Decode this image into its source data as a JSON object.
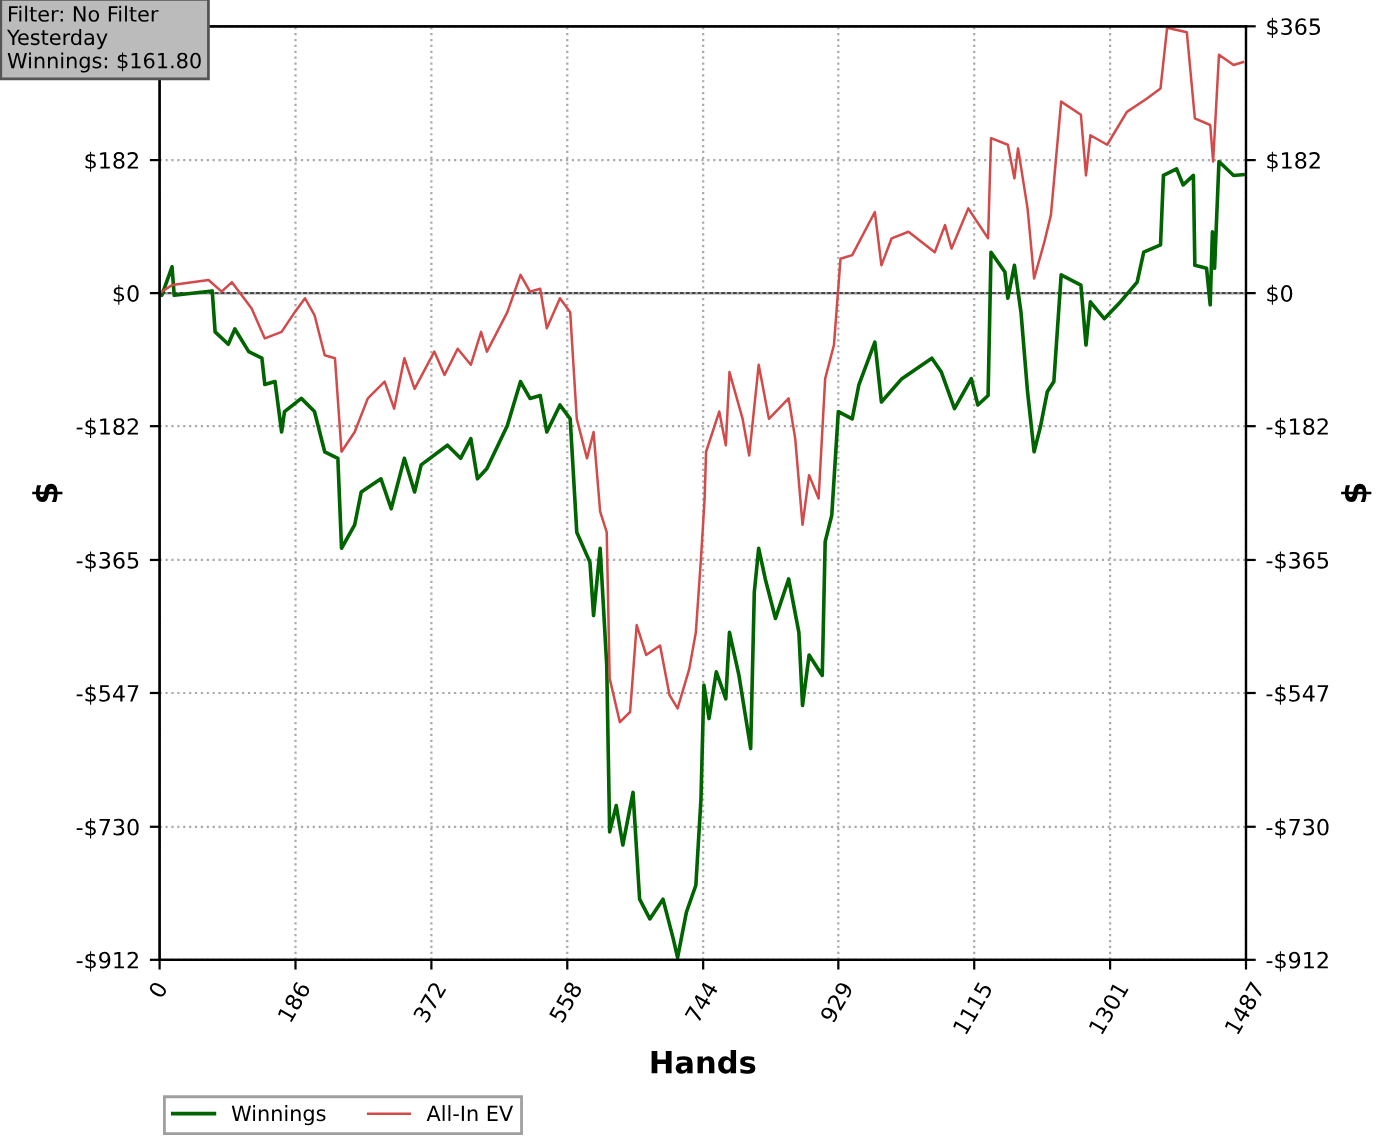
{
  "chart_data": {
    "type": "line",
    "xlabel": "Hands",
    "ylabel": "$",
    "y2label": "$",
    "annotations": [
      "Filter: No Filter\nYesterday\nWinnings: $161.80"
    ],
    "series": [
      {
        "name": "Winnings",
        "color": "#006400",
        "x": [
          0,
          3,
          17,
          20,
          72,
          76,
          94,
          103,
          122,
          140,
          144,
          158,
          167,
          171,
          194,
          212,
          226,
          244,
          249,
          267,
          276,
          303,
          317,
          335,
          349,
          358,
          394,
          412,
          426,
          435,
          448,
          476,
          494,
          507,
          521,
          530,
          548,
          562,
          571,
          589,
          594,
          603,
          612,
          616,
          625,
          634,
          648,
          657,
          671,
          689,
          703,
          709,
          721,
          734,
          741,
          745,
          752,
          762,
          775,
          780,
          793,
          809,
          814,
          820,
          829,
          843,
          861,
          875,
          880,
          889,
          907,
          911,
          920,
          929,
          948,
          957,
          979,
          988,
          1016,
          1057,
          1070,
          1088,
          1111,
          1120,
          1134,
          1138,
          1157,
          1161,
          1170,
          1179,
          1188,
          1197,
          1206,
          1215,
          1224,
          1234,
          1261,
          1268,
          1274,
          1293,
          1315,
          1338,
          1347,
          1370,
          1374,
          1392,
          1401,
          1415,
          1417,
          1433,
          1438,
          1441,
          1444,
          1450,
          1470,
          1483
        ],
        "values": [
          0,
          -3,
          36,
          -3,
          3,
          -53,
          -70,
          -49,
          -80,
          -89,
          -125,
          -121,
          -190,
          -162,
          -144,
          -162,
          -217,
          -226,
          -349,
          -317,
          -272,
          -254,
          -295,
          -226,
          -272,
          -235,
          -208,
          -226,
          -199,
          -254,
          -240,
          -181,
          -121,
          -144,
          -140,
          -190,
          -153,
          -172,
          -327,
          -368,
          -441,
          -349,
          -509,
          -737,
          -701,
          -755,
          -683,
          -829,
          -856,
          -829,
          -883,
          -909,
          -847,
          -810,
          -692,
          -536,
          -582,
          -518,
          -555,
          -464,
          -523,
          -623,
          -409,
          -349,
          -391,
          -445,
          -391,
          -464,
          -564,
          -495,
          -523,
          -340,
          -304,
          -162,
          -172,
          -126,
          -67,
          -149,
          -117,
          -89,
          -108,
          -158,
          -117,
          -153,
          -140,
          56,
          29,
          -7,
          38,
          -26,
          -135,
          -217,
          -181,
          -135,
          -121,
          25,
          11,
          -71,
          -12,
          -35,
          -12,
          15,
          56,
          66,
          161,
          170,
          148,
          161,
          38,
          34,
          -16,
          84,
          34,
          180,
          161,
          162
        ]
      },
      {
        "name": "All-In EV",
        "color": "#d24a4a",
        "x": [
          0,
          17,
          67,
          85,
          99,
          126,
          144,
          167,
          185,
          199,
          212,
          226,
          240,
          249,
          267,
          285,
          308,
          321,
          335,
          349,
          376,
          390,
          408,
          426,
          440,
          448,
          476,
          494,
          507,
          521,
          530,
          548,
          562,
          571,
          585,
          594,
          603,
          612,
          616,
          630,
          644,
          653,
          666,
          685,
          698,
          709,
          725,
          734,
          741,
          746,
          748,
          766,
          775,
          780,
          798,
          807,
          820,
          834,
          861,
          870,
          880,
          889,
          902,
          911,
          923,
          932,
          948,
          979,
          988,
          1002,
          1025,
          1061,
          1075,
          1084,
          1107,
          1116,
          1134,
          1138,
          1161,
          1170,
          1175,
          1188,
          1197,
          1211,
          1220,
          1234,
          1261,
          1268,
          1274,
          1297,
          1324,
          1351,
          1370,
          1379,
          1406,
          1417,
          1438,
          1442,
          1450,
          1470,
          1483
        ],
        "values": [
          0,
          11,
          18,
          2,
          15,
          -21,
          -62,
          -53,
          -26,
          -7,
          -30,
          -85,
          -89,
          -217,
          -190,
          -144,
          -121,
          -158,
          -89,
          -131,
          -80,
          -112,
          -76,
          -98,
          -53,
          -80,
          -26,
          25,
          2,
          6,
          -48,
          -7,
          -26,
          -172,
          -226,
          -190,
          -299,
          -327,
          -527,
          -587,
          -573,
          -454,
          -495,
          -482,
          -550,
          -568,
          -514,
          -464,
          -363,
          -281,
          -217,
          -162,
          -208,
          -108,
          -172,
          -222,
          -98,
          -172,
          -144,
          -199,
          -317,
          -249,
          -281,
          -117,
          -71,
          47,
          52,
          111,
          38,
          75,
          84,
          56,
          93,
          61,
          116,
          102,
          75,
          212,
          203,
          157,
          198,
          116,
          20,
          70,
          107,
          262,
          244,
          161,
          216,
          203,
          248,
          266,
          280,
          363,
          357,
          239,
          230,
          180,
          326,
          312,
          316
        ]
      }
    ],
    "xlim": [
      0,
      1487
    ],
    "xticks": [
      0,
      186,
      372,
      558,
      744,
      929,
      1115,
      1301,
      1487
    ],
    "ylim": [
      -912,
      365
    ],
    "yticks": [
      {
        "value": -912,
        "label": "-$912"
      },
      {
        "value": -730,
        "label": "-$730"
      },
      {
        "value": -547,
        "label": "-$547"
      },
      {
        "value": -365,
        "label": "-$365"
      },
      {
        "value": -182,
        "label": "-$182"
      },
      {
        "value": 0,
        "label": "$0"
      },
      {
        "value": 182,
        "label": "$182"
      },
      {
        "value": 365,
        "label": null
      }
    ],
    "y2lim": [
      -912,
      365
    ],
    "y2ticks": [
      {
        "value": -912,
        "label": "-$912"
      },
      {
        "value": -730,
        "label": "-$730"
      },
      {
        "value": -547,
        "label": "-$547"
      },
      {
        "value": -365,
        "label": "-$365"
      },
      {
        "value": -182,
        "label": "-$182"
      },
      {
        "value": 0,
        "label": "$0"
      },
      {
        "value": 182,
        "label": "$182"
      },
      {
        "value": 365,
        "label": "$365"
      }
    ],
    "ref_lines": [
      {
        "axis": "y",
        "value": 0,
        "color": "#444444"
      }
    ],
    "grid": true,
    "legend": "bottom left",
    "marker": "none",
    "line_style": "solid"
  }
}
